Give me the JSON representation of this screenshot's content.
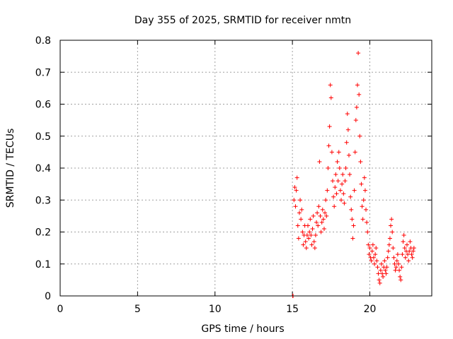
{
  "chart_data": {
    "type": "scatter",
    "title": "Day 355 of 2025, SRMTID for receiver nmtn",
    "xlabel": "GPS time / hours",
    "ylabel": "SRMTID / TECUs",
    "xlim": [
      0,
      24
    ],
    "ylim": [
      0,
      0.8
    ],
    "xticks": [
      0,
      5,
      10,
      15,
      20
    ],
    "yticks": [
      0,
      0.1,
      0.2,
      0.3,
      0.4,
      0.5,
      0.6,
      0.7,
      0.8
    ],
    "xtick_labels": [
      "0",
      "5",
      "10",
      "15",
      "20"
    ],
    "ytick_labels": [
      "0",
      "0.1",
      "0.2",
      "0.3",
      "0.4",
      "0.5",
      "0.6",
      "0.7",
      "0.8"
    ],
    "grid": true,
    "marker": "+",
    "color": "#ff0000",
    "series": [
      {
        "name": "SRMTID",
        "points": [
          [
            15.02,
            0.0
          ],
          [
            15.04,
            0.0
          ],
          [
            15.1,
            0.3
          ],
          [
            15.15,
            0.34
          ],
          [
            15.2,
            0.28
          ],
          [
            15.25,
            0.33
          ],
          [
            15.3,
            0.37
          ],
          [
            15.35,
            0.22
          ],
          [
            15.4,
            0.18
          ],
          [
            15.45,
            0.26
          ],
          [
            15.5,
            0.3
          ],
          [
            15.55,
            0.24
          ],
          [
            15.6,
            0.27
          ],
          [
            15.65,
            0.2
          ],
          [
            15.7,
            0.16
          ],
          [
            15.75,
            0.19
          ],
          [
            15.8,
            0.22
          ],
          [
            15.85,
            0.17
          ],
          [
            15.9,
            0.15
          ],
          [
            15.95,
            0.19
          ],
          [
            16.0,
            0.22
          ],
          [
            16.05,
            0.18
          ],
          [
            16.1,
            0.2
          ],
          [
            16.15,
            0.24
          ],
          [
            16.2,
            0.19
          ],
          [
            16.25,
            0.16
          ],
          [
            16.3,
            0.21
          ],
          [
            16.35,
            0.25
          ],
          [
            16.4,
            0.17
          ],
          [
            16.45,
            0.15
          ],
          [
            16.5,
            0.19
          ],
          [
            16.55,
            0.23
          ],
          [
            16.6,
            0.26
          ],
          [
            16.65,
            0.22
          ],
          [
            16.7,
            0.28
          ],
          [
            16.75,
            0.42
          ],
          [
            16.8,
            0.25
          ],
          [
            16.85,
            0.2
          ],
          [
            16.9,
            0.23
          ],
          [
            16.95,
            0.27
          ],
          [
            17.0,
            0.24
          ],
          [
            17.05,
            0.21
          ],
          [
            17.1,
            0.26
          ],
          [
            17.15,
            0.3
          ],
          [
            17.2,
            0.25
          ],
          [
            17.25,
            0.33
          ],
          [
            17.3,
            0.4
          ],
          [
            17.35,
            0.47
          ],
          [
            17.4,
            0.53
          ],
          [
            17.45,
            0.66
          ],
          [
            17.5,
            0.62
          ],
          [
            17.55,
            0.45
          ],
          [
            17.6,
            0.36
          ],
          [
            17.65,
            0.31
          ],
          [
            17.7,
            0.28
          ],
          [
            17.75,
            0.34
          ],
          [
            17.8,
            0.38
          ],
          [
            17.85,
            0.32
          ],
          [
            17.9,
            0.42
          ],
          [
            17.95,
            0.36
          ],
          [
            18.0,
            0.45
          ],
          [
            18.05,
            0.4
          ],
          [
            18.1,
            0.33
          ],
          [
            18.15,
            0.3
          ],
          [
            18.2,
            0.35
          ],
          [
            18.25,
            0.38
          ],
          [
            18.3,
            0.32
          ],
          [
            18.35,
            0.29
          ],
          [
            18.4,
            0.36
          ],
          [
            18.45,
            0.4
          ],
          [
            18.5,
            0.48
          ],
          [
            18.55,
            0.57
          ],
          [
            18.6,
            0.52
          ],
          [
            18.65,
            0.44
          ],
          [
            18.7,
            0.38
          ],
          [
            18.75,
            0.31
          ],
          [
            18.8,
            0.27
          ],
          [
            18.85,
            0.24
          ],
          [
            18.9,
            0.18
          ],
          [
            18.95,
            0.22
          ],
          [
            19.0,
            0.33
          ],
          [
            19.05,
            0.45
          ],
          [
            19.1,
            0.55
          ],
          [
            19.15,
            0.59
          ],
          [
            19.2,
            0.66
          ],
          [
            19.25,
            0.76
          ],
          [
            19.3,
            0.63
          ],
          [
            19.35,
            0.5
          ],
          [
            19.4,
            0.42
          ],
          [
            19.45,
            0.35
          ],
          [
            19.5,
            0.28
          ],
          [
            19.55,
            0.24
          ],
          [
            19.6,
            0.3
          ],
          [
            19.65,
            0.37
          ],
          [
            19.7,
            0.33
          ],
          [
            19.75,
            0.27
          ],
          [
            19.8,
            0.23
          ],
          [
            19.85,
            0.2
          ],
          [
            19.9,
            0.16
          ],
          [
            19.95,
            0.13
          ],
          [
            20.0,
            0.15
          ],
          [
            20.05,
            0.12
          ],
          [
            20.1,
            0.11
          ],
          [
            20.15,
            0.14
          ],
          [
            20.2,
            0.16
          ],
          [
            20.25,
            0.12
          ],
          [
            20.3,
            0.1
          ],
          [
            20.35,
            0.13
          ],
          [
            20.4,
            0.15
          ],
          [
            20.45,
            0.11
          ],
          [
            20.5,
            0.09
          ],
          [
            20.55,
            0.07
          ],
          [
            20.6,
            0.05
          ],
          [
            20.65,
            0.04
          ],
          [
            20.7,
            0.08
          ],
          [
            20.75,
            0.1
          ],
          [
            20.8,
            0.07
          ],
          [
            20.85,
            0.06
          ],
          [
            20.9,
            0.09
          ],
          [
            20.95,
            0.11
          ],
          [
            21.0,
            0.08
          ],
          [
            21.05,
            0.07
          ],
          [
            21.1,
            0.09
          ],
          [
            21.15,
            0.12
          ],
          [
            21.2,
            0.14
          ],
          [
            21.25,
            0.16
          ],
          [
            21.3,
            0.18
          ],
          [
            21.35,
            0.22
          ],
          [
            21.4,
            0.24
          ],
          [
            21.45,
            0.2
          ],
          [
            21.5,
            0.15
          ],
          [
            21.55,
            0.12
          ],
          [
            21.6,
            0.1
          ],
          [
            21.65,
            0.08
          ],
          [
            21.7,
            0.09
          ],
          [
            21.75,
            0.11
          ],
          [
            21.8,
            0.13
          ],
          [
            21.85,
            0.1
          ],
          [
            21.9,
            0.08
          ],
          [
            21.95,
            0.06
          ],
          [
            22.0,
            0.05
          ],
          [
            22.05,
            0.09
          ],
          [
            22.1,
            0.13
          ],
          [
            22.15,
            0.17
          ],
          [
            22.2,
            0.19
          ],
          [
            22.25,
            0.15
          ],
          [
            22.3,
            0.12
          ],
          [
            22.35,
            0.14
          ],
          [
            22.4,
            0.16
          ],
          [
            22.45,
            0.13
          ],
          [
            22.5,
            0.11
          ],
          [
            22.55,
            0.14
          ],
          [
            22.6,
            0.17
          ],
          [
            22.65,
            0.15
          ],
          [
            22.7,
            0.13
          ],
          [
            22.75,
            0.12
          ],
          [
            22.8,
            0.14
          ],
          [
            22.85,
            0.15
          ]
        ]
      }
    ]
  }
}
